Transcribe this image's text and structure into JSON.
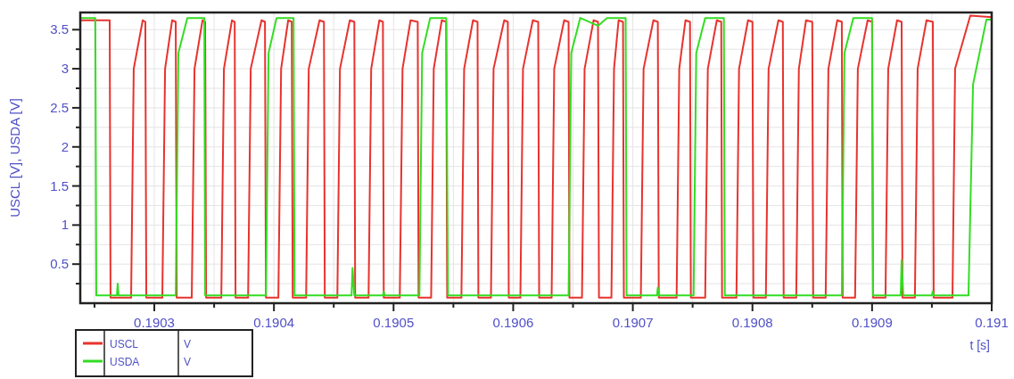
{
  "chart_data": {
    "type": "line",
    "xlabel": "t [s]",
    "ylabel": "USCL [V], USDA [V]",
    "annotations": [
      "V",
      "V"
    ],
    "legend": "bottom left",
    "grid": true,
    "line_style": "solid",
    "xlim": [
      0.1902381,
      0.191
    ],
    "ylim": [
      0,
      3.72
    ],
    "xticks": [
      {
        "value": 0.19025,
        "label": null
      },
      0.1903,
      {
        "value": 0.19035,
        "label": null
      },
      0.1904,
      {
        "value": 0.19045,
        "label": null
      },
      0.1905,
      {
        "value": 0.19055,
        "label": null
      },
      0.1906,
      {
        "value": 0.19065,
        "label": null
      },
      0.1907,
      {
        "value": 0.19075,
        "label": null
      },
      0.1908,
      {
        "value": 0.19085,
        "label": null
      },
      0.1909,
      {
        "value": 0.19095,
        "label": null
      },
      0.191
    ],
    "yticks": [
      {
        "value": 0.25,
        "label": null
      },
      0.5,
      {
        "value": 0.75,
        "label": null
      },
      1,
      {
        "value": 1.25,
        "label": null
      },
      1.5,
      {
        "value": 1.75,
        "label": null
      },
      2,
      {
        "value": 2.25,
        "label": null
      },
      2.5,
      {
        "value": 2.75,
        "label": null
      },
      3,
      {
        "value": 3.25,
        "label": null
      },
      3.5
    ],
    "series": [
      {
        "name": "USCL",
        "color": "#e8332e",
        "x": [
          0.1902381,
          0.1902627,
          0.1902634,
          0.1902806,
          0.1902828,
          0.1902903,
          0.1902925,
          0.1902933,
          0.1903067,
          0.190309,
          0.1903149,
          0.1903179,
          0.1903187,
          0.1903313,
          0.1903336,
          0.1903403,
          0.1903425,
          0.1903433,
          0.190356,
          0.1903582,
          0.1903649,
          0.1903672,
          0.1903679,
          0.1903784,
          0.1903806,
          0.1903896,
          0.1903925,
          0.1903933,
          0.1904037,
          0.190406,
          0.1904119,
          0.1904149,
          0.1904157,
          0.1904269,
          0.1904291,
          0.1904381,
          0.1904418,
          0.1904425,
          0.190453,
          0.1904552,
          0.1904634,
          0.1904672,
          0.1904679,
          0.1904791,
          0.1904813,
          0.1904881,
          0.1904911,
          0.1904918,
          0.1905052,
          0.1905075,
          0.1905142,
          0.1905202,
          0.1905209,
          0.1905314,
          0.1905336,
          0.1905403,
          0.190544,
          0.1905448,
          0.1905567,
          0.190559,
          0.1905664,
          0.1905702,
          0.1905709,
          0.1905814,
          0.1905836,
          0.1905925,
          0.1905955,
          0.1905963,
          0.190606,
          0.1906082,
          0.1906164,
          0.1906209,
          0.1906217,
          0.1906321,
          0.1906343,
          0.1906426,
          0.1906463,
          0.190647,
          0.1906575,
          0.1906597,
          0.1906672,
          0.1906709,
          0.1906717,
          0.1906821,
          0.1906843,
          0.1906881,
          0.1906918,
          0.1906925,
          0.1907067,
          0.190709,
          0.1907172,
          0.1907209,
          0.1907217,
          0.1907366,
          0.1907388,
          0.190744,
          0.1907478,
          0.1907485,
          0.1907605,
          0.1907627,
          0.1907702,
          0.1907739,
          0.1907746,
          0.1907866,
          0.1907888,
          0.1907963,
          0.1908,
          0.1908008,
          0.1908112,
          0.1908135,
          0.1908217,
          0.1908254,
          0.1908261,
          0.1908366,
          0.1908388,
          0.1908448,
          0.19085,
          0.1908508,
          0.1908612,
          0.1908635,
          0.1908709,
          0.1908747,
          0.1908754,
          0.1908858,
          0.1908881,
          0.1908963,
          0.1909,
          0.1909008,
          0.1909112,
          0.1909135,
          0.1909209,
          0.1909247,
          0.1909254,
          0.1909358,
          0.1909381,
          0.1909455,
          0.1909508,
          0.1909515,
          0.1909672,
          0.1909694,
          0.1909821,
          0.191
        ],
        "values": [
          3.62,
          3.62,
          0.07,
          0.07,
          3.0,
          3.62,
          3.6,
          0.07,
          0.07,
          3.0,
          3.62,
          3.6,
          0.07,
          0.07,
          3.0,
          3.62,
          3.6,
          0.07,
          0.07,
          3.0,
          3.62,
          3.6,
          0.07,
          0.07,
          3.0,
          3.62,
          3.6,
          0.07,
          0.07,
          3.0,
          3.62,
          3.6,
          0.07,
          0.07,
          3.0,
          3.62,
          3.6,
          0.07,
          0.07,
          3.0,
          3.62,
          3.6,
          0.07,
          0.07,
          3.0,
          3.62,
          3.6,
          0.07,
          0.07,
          3.0,
          3.62,
          3.6,
          0.07,
          0.07,
          3.0,
          3.62,
          3.6,
          0.07,
          0.07,
          3.0,
          3.62,
          3.6,
          0.07,
          0.07,
          3.0,
          3.62,
          3.6,
          0.07,
          0.07,
          3.0,
          3.62,
          3.6,
          0.07,
          0.07,
          3.0,
          3.62,
          3.6,
          0.07,
          0.07,
          3.0,
          3.62,
          3.6,
          0.07,
          0.07,
          3.0,
          3.62,
          3.6,
          0.07,
          0.07,
          3.0,
          3.62,
          3.6,
          0.07,
          0.07,
          3.0,
          3.62,
          3.6,
          0.07,
          0.07,
          3.0,
          3.62,
          3.6,
          0.07,
          0.07,
          3.0,
          3.62,
          3.6,
          0.07,
          0.07,
          3.0,
          3.62,
          3.6,
          0.07,
          0.07,
          3.0,
          3.62,
          3.6,
          0.07,
          0.07,
          3.0,
          3.62,
          3.6,
          0.07,
          0.07,
          3.0,
          3.62,
          3.6,
          0.07,
          0.07,
          3.0,
          3.62,
          3.6,
          0.07,
          0.07,
          3.0,
          3.62,
          3.6,
          0.07,
          0.07,
          3.0,
          3.68,
          3.66
        ]
      },
      {
        "name": "USDA",
        "color": "#33dd22",
        "x": [
          0.1902381,
          0.1902507,
          0.1902515,
          0.1902687,
          0.1902694,
          0.1902701,
          0.1903179,
          0.1903201,
          0.1903276,
          0.1903418,
          0.1903425,
          0.1903933,
          0.1903955,
          0.1904022,
          0.1904164,
          0.1904172,
          0.1904649,
          0.1904657,
          0.1904672,
          0.1904911,
          0.1904918,
          0.1904925,
          0.1905216,
          0.1905239,
          0.1905306,
          0.190544,
          0.1905455,
          0.1906463,
          0.1906485,
          0.190656,
          0.1906709,
          0.1906784,
          0.190694,
          0.1906948,
          0.1907202,
          0.1907209,
          0.1907217,
          0.1907508,
          0.190753,
          0.1907605,
          0.1907761,
          0.1907769,
          0.1908747,
          0.1908769,
          0.1908843,
          0.1909,
          0.1909008,
          0.1909239,
          0.1909247,
          0.1909261,
          0.19095,
          0.1909508,
          0.1909515,
          0.1909806,
          0.1909844,
          0.1909956,
          0.191
        ],
        "values": [
          3.65,
          3.65,
          0.1,
          0.1,
          0.25,
          0.1,
          0.1,
          3.2,
          3.65,
          3.65,
          0.1,
          0.1,
          3.2,
          3.65,
          3.65,
          0.1,
          0.1,
          0.45,
          0.1,
          0.1,
          0.15,
          0.1,
          0.1,
          3.2,
          3.65,
          3.65,
          0.1,
          0.1,
          3.2,
          3.65,
          3.55,
          3.65,
          3.65,
          0.1,
          0.1,
          0.2,
          0.1,
          0.1,
          3.2,
          3.65,
          3.65,
          0.1,
          0.1,
          3.2,
          3.65,
          3.65,
          0.1,
          0.1,
          0.55,
          0.1,
          0.1,
          0.15,
          0.1,
          0.1,
          2.8,
          3.63,
          3.63
        ]
      }
    ]
  }
}
